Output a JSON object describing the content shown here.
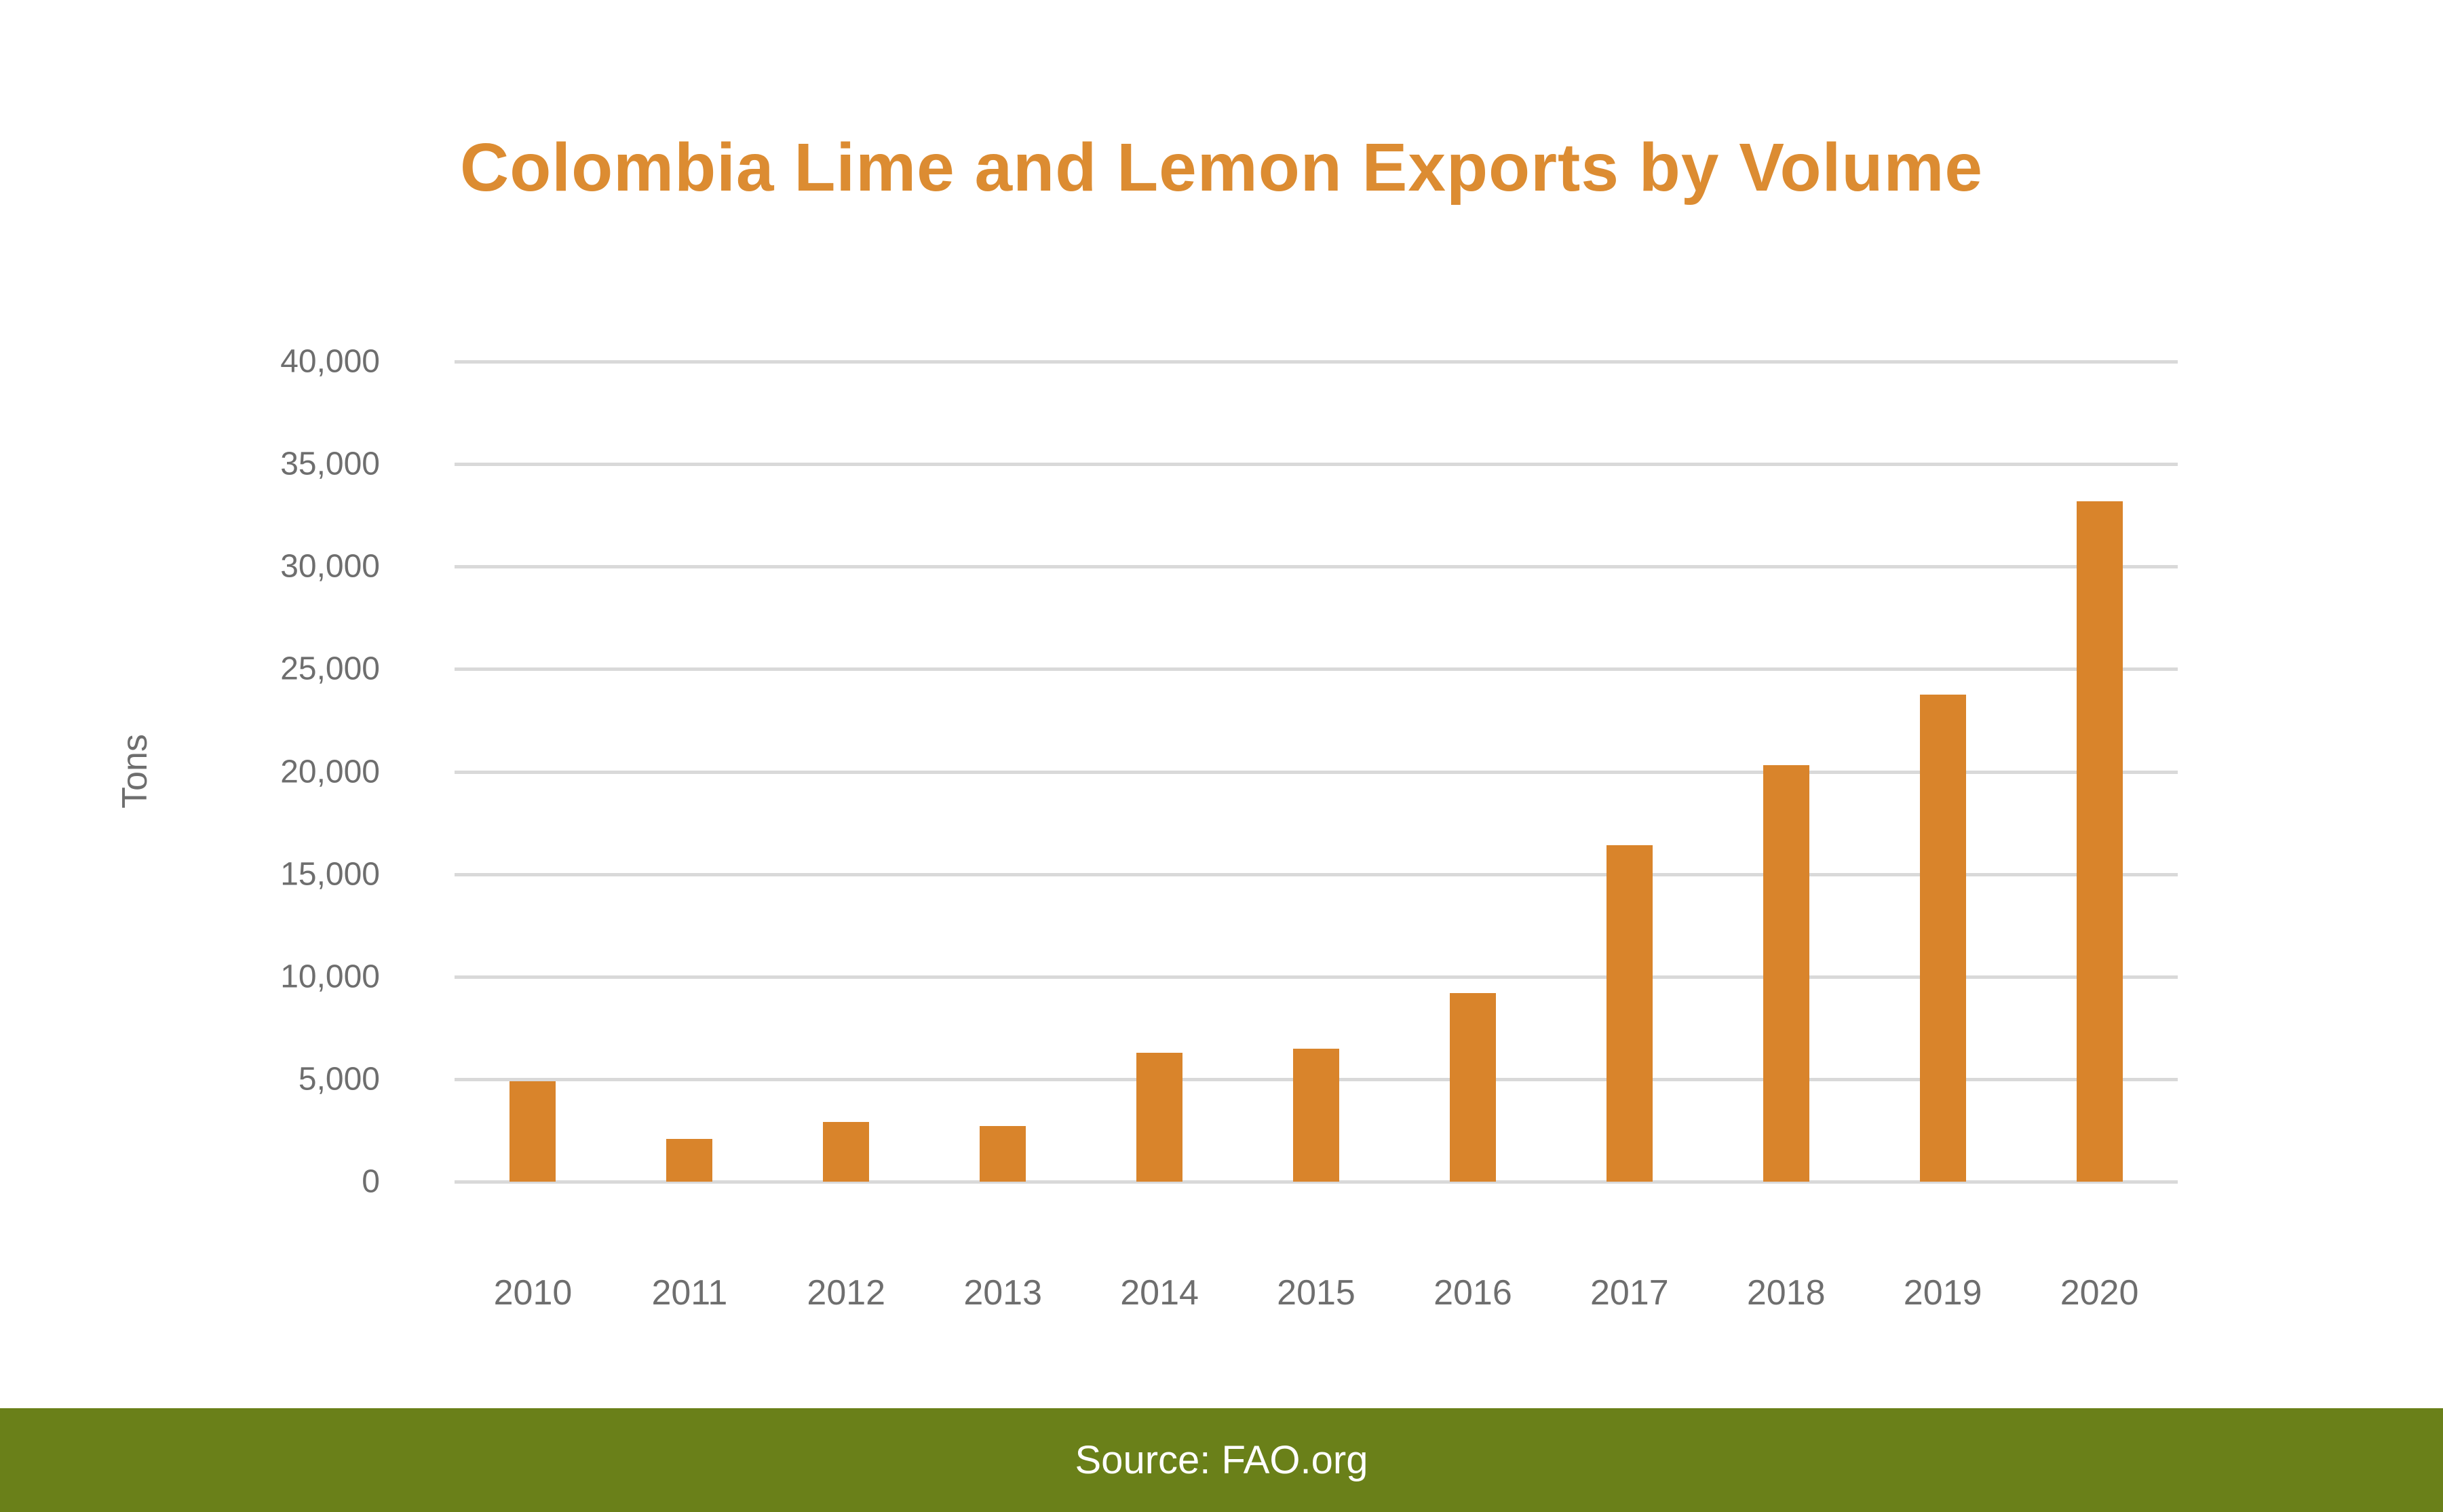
{
  "page": {
    "title": "Colombia Lime and Lemon Exports by Volume",
    "footer": {
      "source_label": "Source: FAO.org"
    }
  },
  "chart_data": {
    "type": "bar",
    "title": "Colombia Lime and Lemon Exports by Volume",
    "categories": [
      "2010",
      "2011",
      "2012",
      "2013",
      "2014",
      "2015",
      "2016",
      "2017",
      "2018",
      "2019",
      "2020"
    ],
    "values": [
      4900,
      2100,
      2900,
      2700,
      6300,
      6500,
      9200,
      16400,
      20300,
      23750,
      33200
    ],
    "xlabel": "",
    "ylabel": "Tons",
    "ylim": [
      0,
      40000
    ],
    "ytick_step": 5000,
    "yticks": [
      "0",
      "5,000",
      "10,000",
      "15,000",
      "20,000",
      "25,000",
      "30,000",
      "35,000",
      "40,000"
    ],
    "grid": true,
    "legend": false,
    "colors": {
      "bar": "#D9842B",
      "title": "#DC8C32",
      "gridline": "#D9D9D9",
      "axis_labels": "#6E6E6E",
      "footer_bg": "#6A8019",
      "footer_text": "#FFFFFF"
    }
  }
}
